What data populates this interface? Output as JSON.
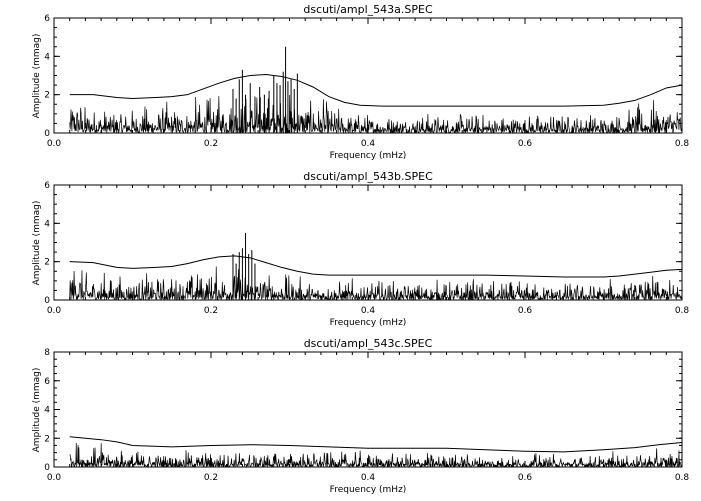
{
  "chart_data": [
    {
      "type": "line",
      "title": "dscuti/ampl_543a.SPEC",
      "xlabel": "Frequency (mHz)",
      "ylabel": "Amplitude (mmag)",
      "xlim": [
        0.0,
        0.8
      ],
      "ylim": [
        0,
        6
      ],
      "xticks": [
        "0.0",
        "0.2",
        "0.4",
        "0.6",
        "0.8"
      ],
      "yticks": [
        "0",
        "2",
        "4",
        "6"
      ],
      "grid": false,
      "series": [
        {
          "role": "threshold",
          "x": [
            0.02,
            0.05,
            0.08,
            0.1,
            0.13,
            0.15,
            0.17,
            0.19,
            0.21,
            0.23,
            0.25,
            0.27,
            0.29,
            0.31,
            0.33,
            0.35,
            0.37,
            0.39,
            0.42,
            0.45,
            0.5,
            0.55,
            0.6,
            0.65,
            0.7,
            0.72,
            0.74,
            0.76,
            0.78,
            0.8
          ],
          "y": [
            2.0,
            2.0,
            1.85,
            1.8,
            1.85,
            1.9,
            2.0,
            2.3,
            2.6,
            2.85,
            3.0,
            3.05,
            2.95,
            2.75,
            2.4,
            1.9,
            1.6,
            1.45,
            1.4,
            1.4,
            1.4,
            1.4,
            1.4,
            1.4,
            1.45,
            1.55,
            1.7,
            2.0,
            2.35,
            2.5
          ]
        },
        {
          "role": "spectrum-peaks",
          "x": [
            0.228,
            0.232,
            0.236,
            0.24,
            0.244,
            0.25,
            0.256,
            0.262,
            0.268,
            0.274,
            0.28,
            0.284,
            0.288,
            0.292,
            0.295,
            0.298,
            0.302,
            0.306,
            0.31
          ],
          "y": [
            2.3,
            1.8,
            2.8,
            3.3,
            2.0,
            2.6,
            1.9,
            2.4,
            2.0,
            2.2,
            3.0,
            2.6,
            2.5,
            3.2,
            4.5,
            2.7,
            2.8,
            2.3,
            3.1
          ]
        }
      ]
    },
    {
      "type": "line",
      "title": "dscuti/ampl_543b.SPEC",
      "xlabel": "Frequency (mHz)",
      "ylabel": "Amplitude (mmag)",
      "xlim": [
        0.0,
        0.8
      ],
      "ylim": [
        0,
        6
      ],
      "xticks": [
        "0.0",
        "0.2",
        "0.4",
        "0.6",
        "0.8"
      ],
      "yticks": [
        "0",
        "2",
        "4",
        "6"
      ],
      "grid": false,
      "series": [
        {
          "role": "threshold",
          "x": [
            0.02,
            0.05,
            0.08,
            0.1,
            0.13,
            0.15,
            0.17,
            0.19,
            0.21,
            0.23,
            0.25,
            0.27,
            0.29,
            0.31,
            0.33,
            0.35,
            0.4,
            0.45,
            0.5,
            0.55,
            0.6,
            0.65,
            0.7,
            0.72,
            0.74,
            0.76,
            0.78,
            0.8
          ],
          "y": [
            2.0,
            1.95,
            1.7,
            1.65,
            1.7,
            1.75,
            1.9,
            2.1,
            2.25,
            2.3,
            2.2,
            1.95,
            1.7,
            1.5,
            1.35,
            1.3,
            1.3,
            1.3,
            1.3,
            1.3,
            1.25,
            1.2,
            1.2,
            1.25,
            1.35,
            1.45,
            1.55,
            1.6
          ]
        },
        {
          "role": "spectrum-peaks",
          "x": [
            0.228,
            0.232,
            0.236,
            0.24,
            0.244,
            0.248,
            0.252,
            0.256
          ],
          "y": [
            2.4,
            1.9,
            2.5,
            2.7,
            3.5,
            2.4,
            2.6,
            1.9
          ]
        }
      ]
    },
    {
      "type": "line",
      "title": "dscuti/ampl_543c.SPEC",
      "xlabel": "Frequency (mHz)",
      "ylabel": "Amplitude (mmag)",
      "xlim": [
        0.0,
        0.8
      ],
      "ylim": [
        0,
        8
      ],
      "xticks": [
        "0.0",
        "0.2",
        "0.4",
        "0.6",
        "0.8"
      ],
      "yticks": [
        "0",
        "2",
        "4",
        "6",
        "8"
      ],
      "grid": false,
      "series": [
        {
          "role": "threshold",
          "x": [
            0.02,
            0.04,
            0.06,
            0.08,
            0.1,
            0.15,
            0.2,
            0.25,
            0.3,
            0.35,
            0.4,
            0.45,
            0.5,
            0.55,
            0.6,
            0.65,
            0.7,
            0.74,
            0.77,
            0.8
          ],
          "y": [
            2.1,
            2.0,
            1.9,
            1.75,
            1.5,
            1.4,
            1.5,
            1.55,
            1.5,
            1.4,
            1.3,
            1.3,
            1.3,
            1.2,
            1.1,
            1.05,
            1.2,
            1.35,
            1.55,
            1.7
          ]
        },
        {
          "role": "spectrum-peaks",
          "x": [],
          "y": []
        }
      ]
    }
  ]
}
